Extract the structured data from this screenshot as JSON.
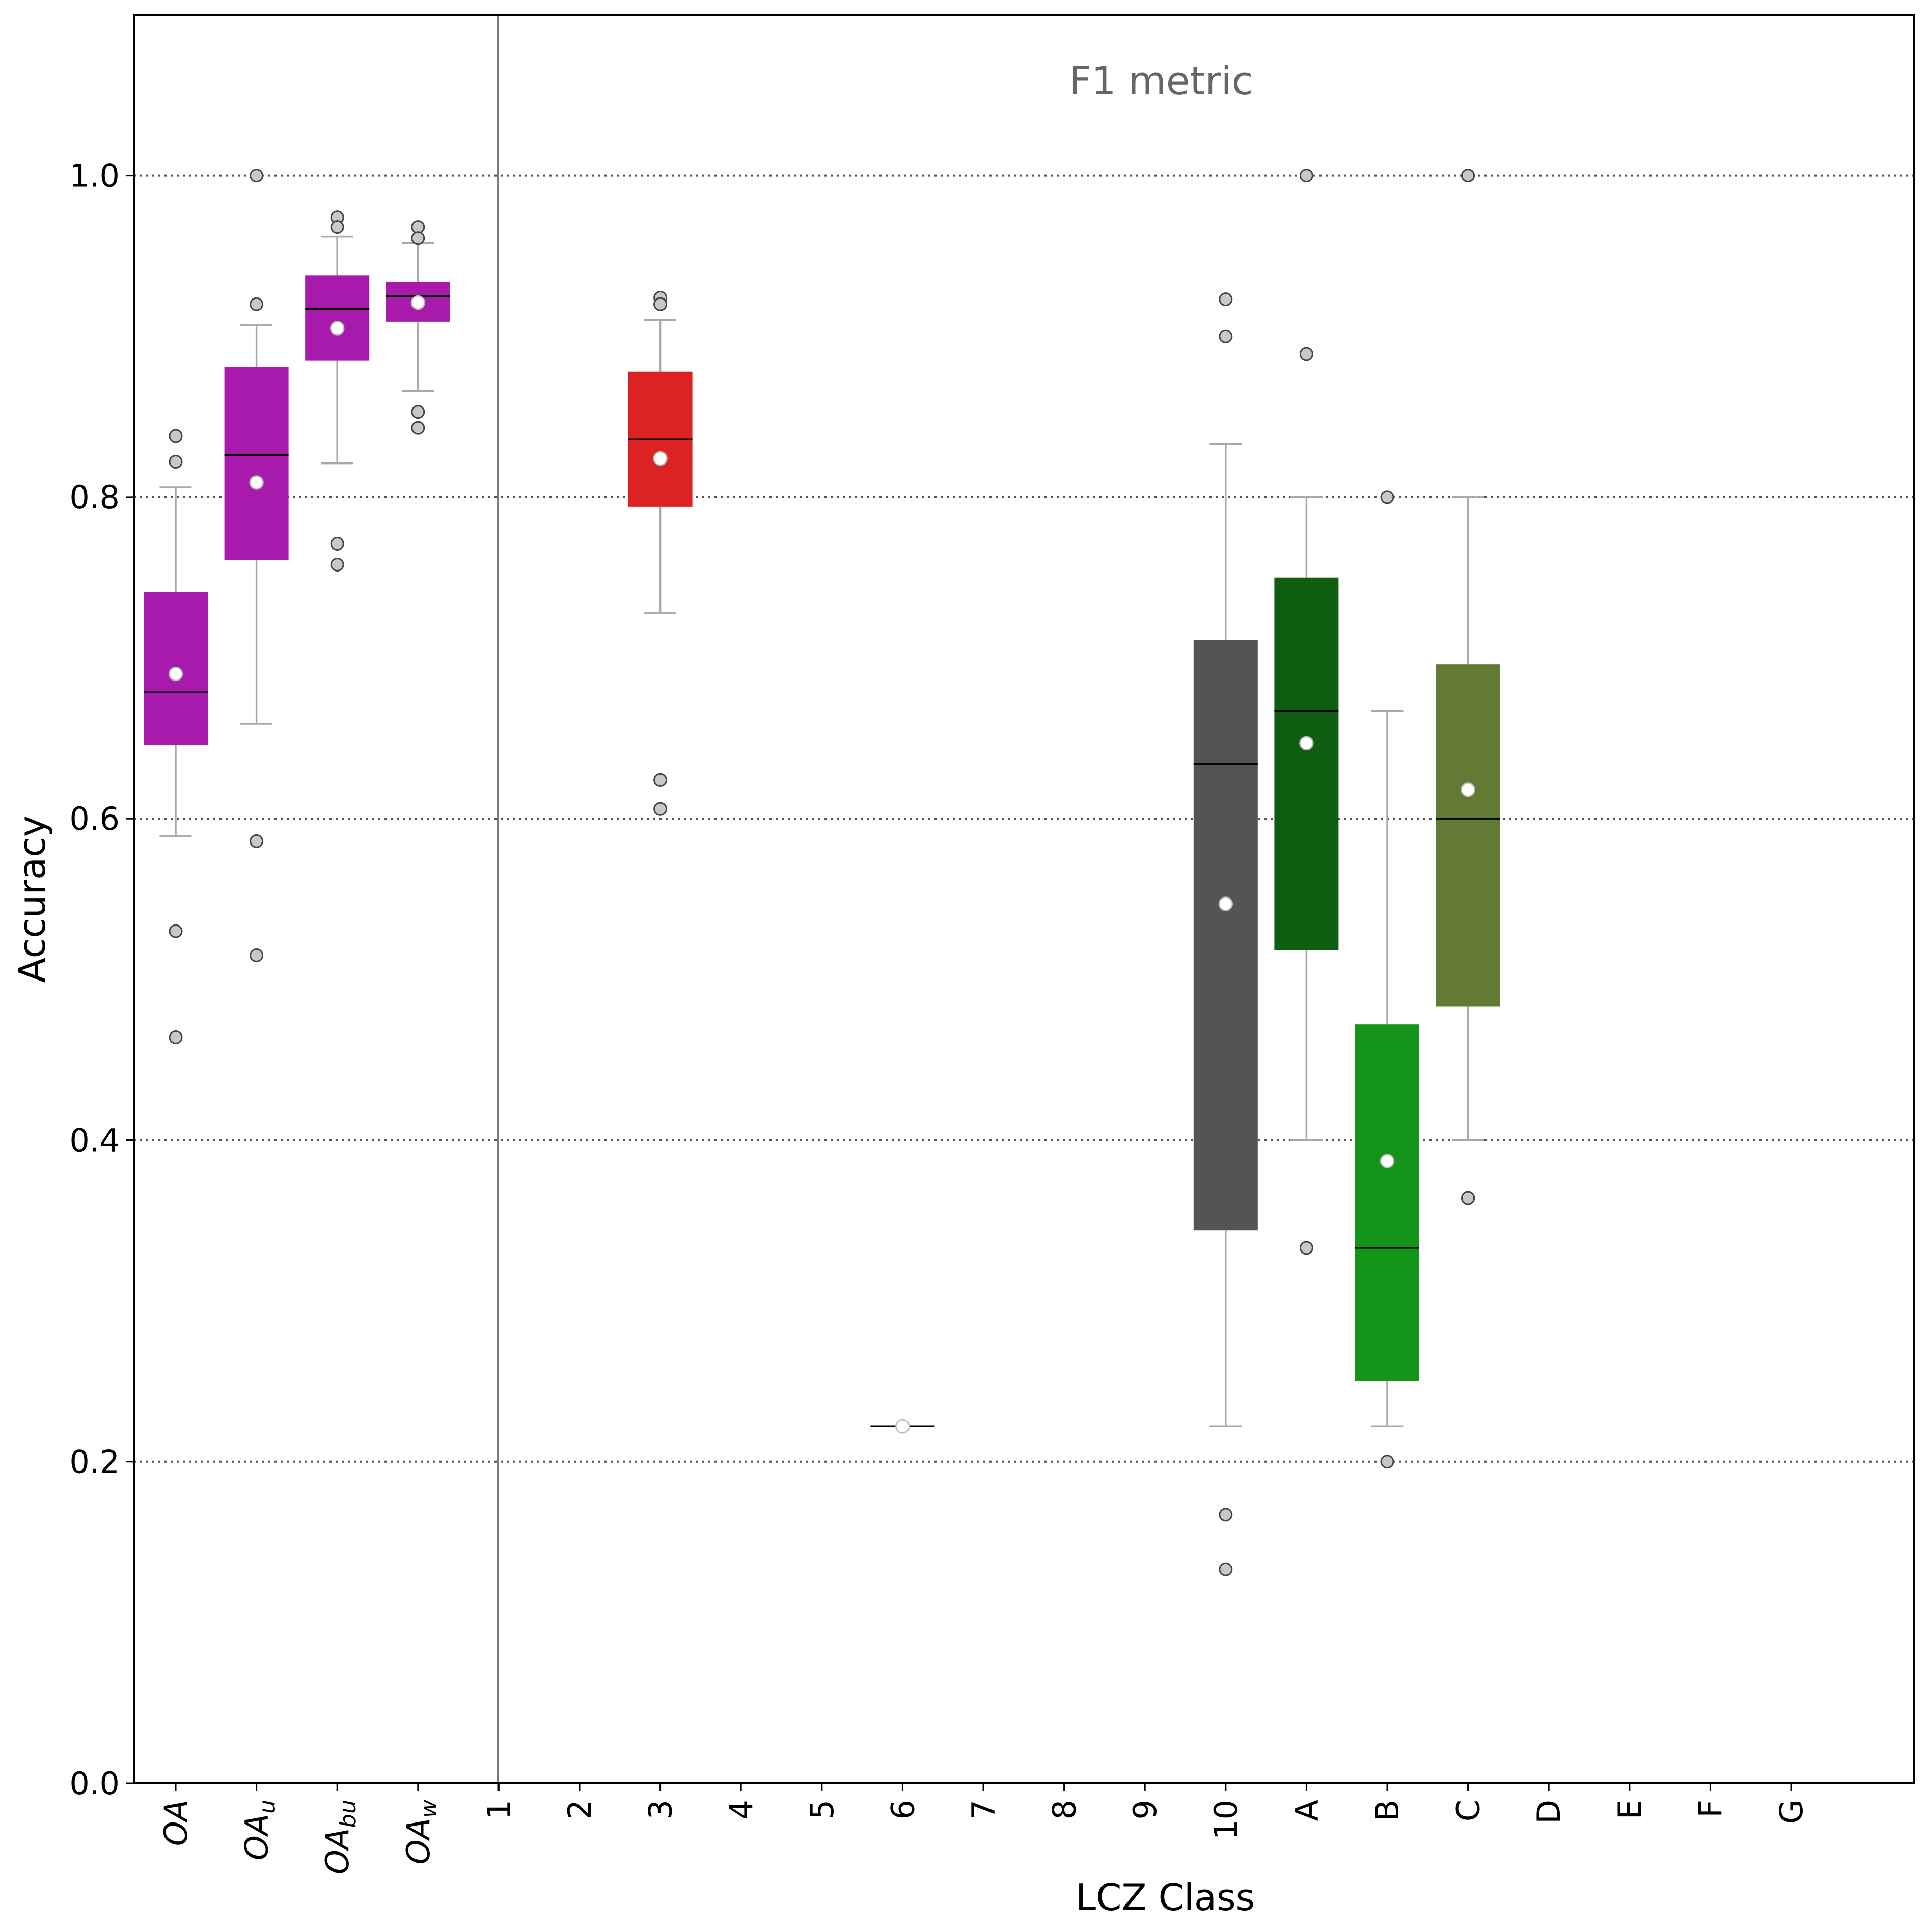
{
  "chart_data": {
    "type": "box",
    "annotation": "F1 metric",
    "xlabel": "LCZ Class",
    "ylabel": "Accuracy",
    "ylim": [
      0,
      1.1
    ],
    "yticks": [
      "0.0",
      "0.2",
      "0.4",
      "0.6",
      "0.8",
      "1.0"
    ],
    "grid": "horizontal dotted at 0.2 intervals",
    "categories": [
      {
        "label": "OA",
        "base": "OA",
        "sub": "",
        "italic": true
      },
      {
        "label": "OA_u",
        "base": "OA",
        "sub": "u",
        "italic": true
      },
      {
        "label": "OA_bu",
        "base": "OA",
        "sub": "bu",
        "italic": true
      },
      {
        "label": "OA_w",
        "base": "OA",
        "sub": "w",
        "italic": true
      },
      {
        "label": "1"
      },
      {
        "label": "2"
      },
      {
        "label": "3"
      },
      {
        "label": "4"
      },
      {
        "label": "5"
      },
      {
        "label": "6"
      },
      {
        "label": "7"
      },
      {
        "label": "8"
      },
      {
        "label": "9"
      },
      {
        "label": "10"
      },
      {
        "label": "A"
      },
      {
        "label": "B"
      },
      {
        "label": "C"
      },
      {
        "label": "D"
      },
      {
        "label": "E"
      },
      {
        "label": "F"
      },
      {
        "label": "G"
      }
    ],
    "boxes": [
      {
        "category": "OA",
        "color": "#a71aab",
        "q1": 0.646,
        "median": 0.679,
        "q3": 0.741,
        "whisker_low": 0.589,
        "whisker_high": 0.806,
        "mean": 0.69,
        "outliers": [
          0.838,
          0.822,
          0.53,
          0.464
        ]
      },
      {
        "category": "OA_u",
        "color": "#a71aab",
        "q1": 0.761,
        "median": 0.826,
        "q3": 0.881,
        "whisker_low": 0.659,
        "whisker_high": 0.907,
        "mean": 0.809,
        "outliers": [
          1.0,
          0.92,
          0.586,
          0.515
        ]
      },
      {
        "category": "OA_bu",
        "color": "#a71aab",
        "q1": 0.885,
        "median": 0.917,
        "q3": 0.938,
        "whisker_low": 0.821,
        "whisker_high": 0.962,
        "mean": 0.905,
        "outliers": [
          0.974,
          0.968,
          0.771,
          0.758
        ]
      },
      {
        "category": "OA_w",
        "color": "#a71aab",
        "q1": 0.909,
        "median": 0.925,
        "q3": 0.934,
        "whisker_low": 0.866,
        "whisker_high": 0.958,
        "mean": 0.921,
        "outliers": [
          0.968,
          0.961,
          0.853,
          0.843
        ]
      },
      {
        "category": "3",
        "color": "#dd2224",
        "q1": 0.794,
        "median": 0.836,
        "q3": 0.878,
        "whisker_low": 0.728,
        "whisker_high": 0.91,
        "mean": 0.824,
        "outliers": [
          0.924,
          0.92,
          0.624,
          0.606
        ]
      },
      {
        "category": "6",
        "color": "#9aa0a6",
        "q1": 0.222,
        "median": 0.222,
        "q3": 0.222,
        "whisker_low": 0.222,
        "whisker_high": 0.222,
        "mean": 0.222,
        "outliers": []
      },
      {
        "category": "10",
        "color": "#545454",
        "q1": 0.344,
        "median": 0.634,
        "q3": 0.711,
        "whisker_low": 0.222,
        "whisker_high": 0.833,
        "mean": 0.547,
        "outliers": [
          0.923,
          0.9,
          0.167,
          0.133
        ]
      },
      {
        "category": "A",
        "color": "#0e5d10",
        "q1": 0.518,
        "median": 0.667,
        "q3": 0.75,
        "whisker_low": 0.4,
        "whisker_high": 0.8,
        "mean": 0.647,
        "outliers": [
          1.0,
          0.889,
          0.333
        ]
      },
      {
        "category": "B",
        "color": "#14951a",
        "q1": 0.25,
        "median": 0.333,
        "q3": 0.472,
        "whisker_low": 0.222,
        "whisker_high": 0.667,
        "mean": 0.387,
        "outliers": [
          0.8,
          0.2
        ]
      },
      {
        "category": "C",
        "color": "#627a33",
        "q1": 0.483,
        "median": 0.6,
        "q3": 0.696,
        "whisker_low": 0.4,
        "whisker_high": 0.8,
        "mean": 0.618,
        "outliers": [
          1.0,
          1.0,
          0.364,
          0.364
        ]
      }
    ]
  }
}
